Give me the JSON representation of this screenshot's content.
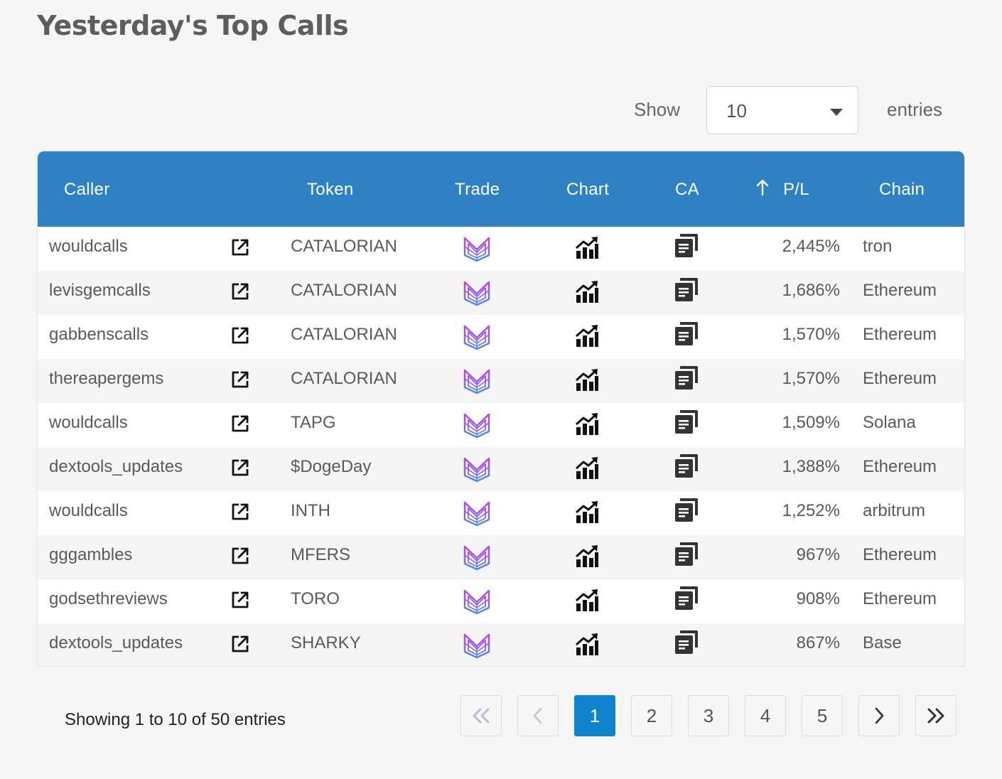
{
  "page": {
    "title": "Yesterday's Top Calls"
  },
  "length_control": {
    "show_label": "Show",
    "selected": "10",
    "entries_label": "entries"
  },
  "table": {
    "headers": {
      "caller": "Caller",
      "token": "Token",
      "trade": "Trade",
      "chart": "Chart",
      "ca": "CA",
      "pl": "P/L",
      "chain": "Chain"
    },
    "sort": {
      "column": "P/L",
      "direction": "descending"
    },
    "rows": [
      {
        "caller": "wouldcalls",
        "token": "CATALORIAN",
        "pl": "2,445%",
        "chain": "tron"
      },
      {
        "caller": "levisgemcalls",
        "token": "CATALORIAN",
        "pl": "1,686%",
        "chain": "Ethereum"
      },
      {
        "caller": "gabbenscalls",
        "token": "CATALORIAN",
        "pl": "1,570%",
        "chain": "Ethereum"
      },
      {
        "caller": "thereapergems",
        "token": "CATALORIAN",
        "pl": "1,570%",
        "chain": "Ethereum"
      },
      {
        "caller": "wouldcalls",
        "token": "TAPG",
        "pl": "1,509%",
        "chain": "Solana"
      },
      {
        "caller": "dextools_updates",
        "token": "$DogeDay",
        "pl": "1,388%",
        "chain": "Ethereum"
      },
      {
        "caller": "wouldcalls",
        "token": "INTH",
        "pl": "1,252%",
        "chain": "arbitrum"
      },
      {
        "caller": "gggambles",
        "token": "MFERS",
        "pl": "967%",
        "chain": "Ethereum"
      },
      {
        "caller": "godsethreviews",
        "token": "TORO",
        "pl": "908%",
        "chain": "Ethereum"
      },
      {
        "caller": "dextools_updates",
        "token": "SHARKY",
        "pl": "867%",
        "chain": "Base"
      }
    ],
    "row_icons": {
      "caller_link": "external-link-icon",
      "trade": "trade-logo-icon",
      "chart": "chart-icon",
      "ca": "copy-icon"
    }
  },
  "info": "Showing 1 to 10 of 50 entries",
  "pagination": {
    "pages": [
      "1",
      "2",
      "3",
      "4",
      "5"
    ],
    "current": "1",
    "icons": {
      "first": "double-chevron-left-icon",
      "prev": "chevron-left-icon",
      "next": "chevron-right-icon",
      "last": "double-chevron-right-icon"
    }
  },
  "colors": {
    "header_bg": "#2e82c4",
    "active_page": "#1083cf",
    "trade_logo_top": "#c13bf0",
    "trade_logo_bottom": "#4b8cf0"
  }
}
